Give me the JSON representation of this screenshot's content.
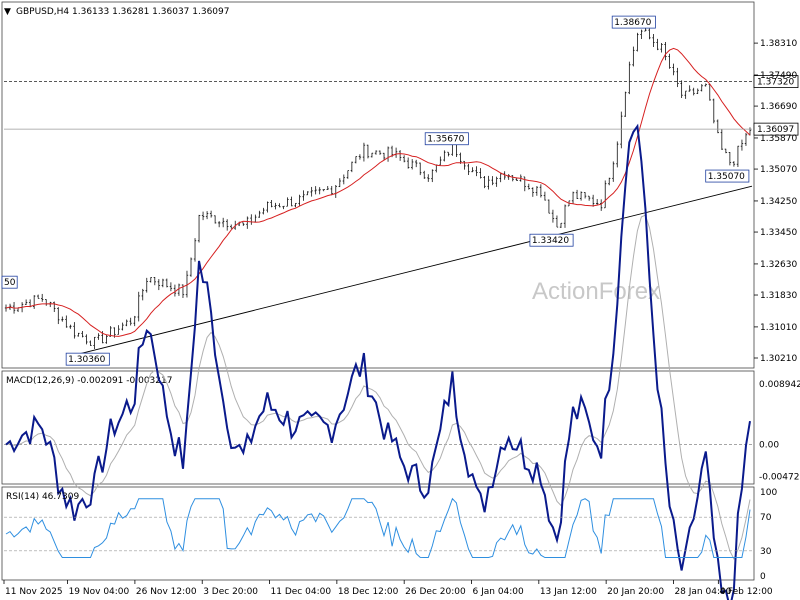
{
  "chart_data": [
    {
      "type": "candlestick",
      "symbol": "GBPUSD",
      "timeframe": "H4",
      "header": "GBPUSD,H4  1.36133 1.36281 1.36037 1.36097",
      "ohlc": {
        "open": 1.36133,
        "high": 1.36281,
        "low": 1.36037,
        "close": 1.36097
      },
      "watermark": "ActionForex",
      "ylim": [
        1.3021,
        1.3875
      ],
      "y_ticks": [
        "1.38310",
        "1.37490",
        "1.36690",
        "1.35870",
        "1.35070",
        "1.34250",
        "1.33450",
        "1.32630",
        "1.31830",
        "1.31010",
        "1.30210"
      ],
      "x_ticks": [
        "11 Nov 2025",
        "19 Nov 04:00",
        "26 Nov 12:00",
        "3 Dec 20:00",
        "11 Dec 04:00",
        "18 Dec 12:00",
        "26 Dec 20:00",
        "6 Jan 04:00",
        "13 Jan 12:00",
        "20 Jan 20:00",
        "28 Jan 04:00",
        "4 Feb 12:00"
      ],
      "price_labels": [
        {
          "label": "1.38670",
          "value": 1.3867
        },
        {
          "label": "1.35670",
          "value": 1.3567
        },
        {
          "label": "1.33420",
          "value": 1.3342
        },
        {
          "label": "1.35070",
          "value": 1.3507
        },
        {
          "label": "1.30360",
          "value": 1.3036
        },
        {
          "label": "50",
          "value": 1.3198
        }
      ],
      "hlines": [
        {
          "label": "1.37320",
          "value": 1.3732,
          "style": "dashed"
        },
        {
          "label": "1.36097",
          "value": 1.36097,
          "style": "solid"
        }
      ],
      "trendline": [
        [
          0.085,
          1.3024
        ],
        [
          1.0,
          1.3463
        ]
      ],
      "ma_color": "#d62020",
      "grid": false
    },
    {
      "type": "line",
      "title": "MACD(12,26,9) -0.002091 -0.003217",
      "ylim": [
        -0.0055,
        0.0095
      ],
      "y_ticks": [
        "0.008942",
        "0.00",
        "-0.004725"
      ],
      "zero_line": 0.0,
      "series_colors": [
        "#0a1a8c",
        "#b0b0b0"
      ]
    },
    {
      "type": "line",
      "title": "RSI(14) 46.7309",
      "ylim": [
        0,
        100
      ],
      "y_ticks": [
        "100",
        "70",
        "30",
        "0"
      ],
      "levels": [
        70,
        30
      ],
      "series_color": "#2f8fe0"
    }
  ]
}
